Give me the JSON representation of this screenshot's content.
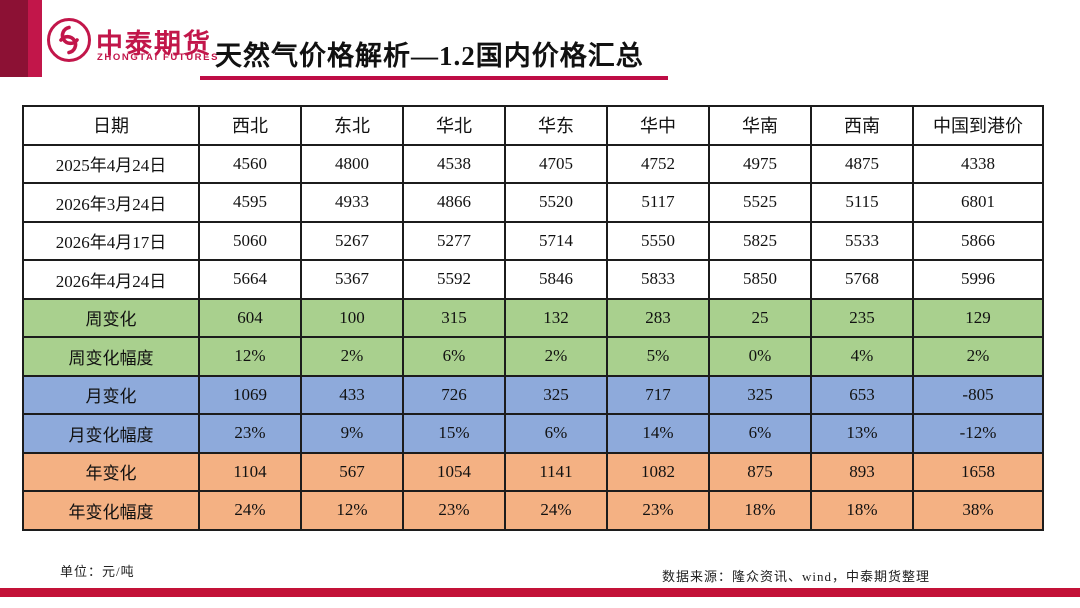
{
  "slide": {
    "brand": {
      "name_cn": "中泰期货",
      "name_en": "ZHONGTAI FUTURES"
    },
    "title": "天然气价格解析—1.2国内价格汇总"
  },
  "table": {
    "columns": [
      "日期",
      "西北",
      "东北",
      "华北",
      "华东",
      "华中",
      "华南",
      "西南",
      "中国到港价"
    ],
    "rows": [
      {
        "label": "2025年4月24日",
        "band": "white",
        "values": [
          "4560",
          "4800",
          "4538",
          "4705",
          "4752",
          "4975",
          "4875",
          "4338"
        ]
      },
      {
        "label": "2026年3月24日",
        "band": "white",
        "values": [
          "4595",
          "4933",
          "4866",
          "5520",
          "5117",
          "5525",
          "5115",
          "6801"
        ]
      },
      {
        "label": "2026年4月17日",
        "band": "white",
        "values": [
          "5060",
          "5267",
          "5277",
          "5714",
          "5550",
          "5825",
          "5533",
          "5866"
        ]
      },
      {
        "label": "2026年4月24日",
        "band": "white",
        "values": [
          "5664",
          "5367",
          "5592",
          "5846",
          "5833",
          "5850",
          "5768",
          "5996"
        ]
      },
      {
        "label": "周变化",
        "band": "green",
        "values": [
          "604",
          "100",
          "315",
          "132",
          "283",
          "25",
          "235",
          "129"
        ]
      },
      {
        "label": "周变化幅度",
        "band": "green",
        "values": [
          "12%",
          "2%",
          "6%",
          "2%",
          "5%",
          "0%",
          "4%",
          "2%"
        ]
      },
      {
        "label": "月变化",
        "band": "blue",
        "values": [
          "1069",
          "433",
          "726",
          "325",
          "717",
          "325",
          "653",
          "-805"
        ]
      },
      {
        "label": "月变化幅度",
        "band": "blue",
        "values": [
          "23%",
          "9%",
          "15%",
          "6%",
          "14%",
          "6%",
          "13%",
          "-12%"
        ]
      },
      {
        "label": "年变化",
        "band": "orange",
        "values": [
          "1104",
          "567",
          "1054",
          "1141",
          "1082",
          "875",
          "893",
          "1658"
        ]
      },
      {
        "label": "年变化幅度",
        "band": "orange",
        "values": [
          "24%",
          "12%",
          "23%",
          "24%",
          "23%",
          "18%",
          "18%",
          "38%"
        ]
      }
    ]
  },
  "footer": {
    "unit": "单位：元/吨",
    "source": "数据来源：隆众资讯、wind，中泰期货整理"
  },
  "colors": {
    "brand_crimson": "#C2164A",
    "brand_dark_red": "#8C1134",
    "title_underline": "#BE0D45",
    "bottom_bar": "#C31238",
    "band_white": "#FFFFFF",
    "band_green": "#A9D08E",
    "band_blue": "#8EAADB",
    "band_orange": "#F4B183"
  }
}
